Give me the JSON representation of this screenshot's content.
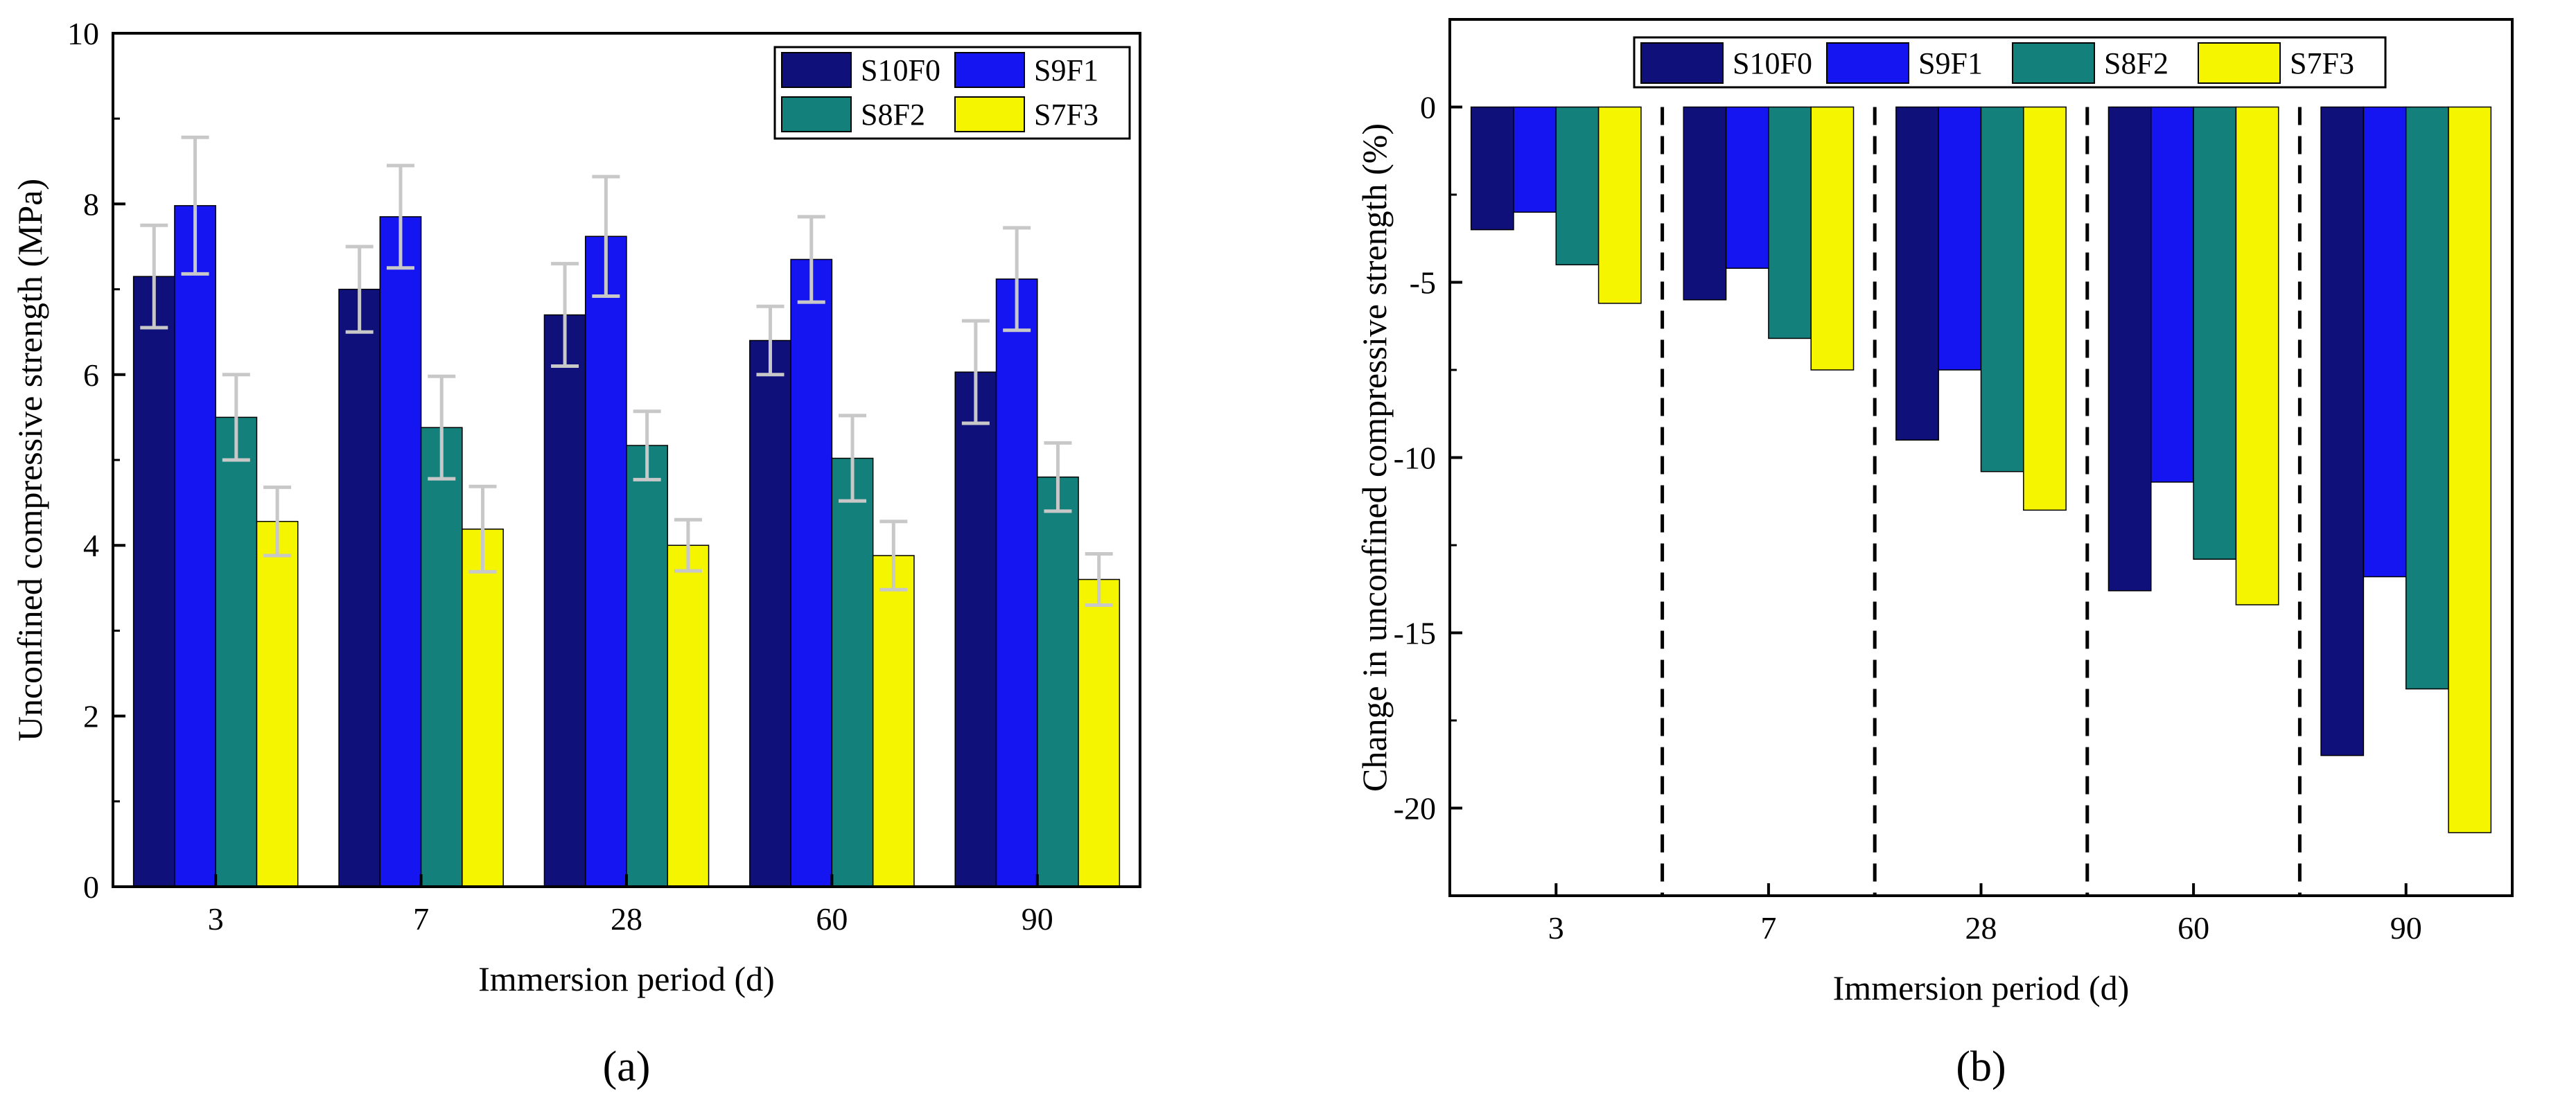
{
  "chart_data": [
    {
      "type": "bar",
      "panel_label": "(a)",
      "categories": [
        "3",
        "7",
        "28",
        "60",
        "90"
      ],
      "series": [
        {
          "name": "S10F0",
          "color": "#10107a",
          "values": [
            7.15,
            7.0,
            6.7,
            6.4,
            6.03
          ],
          "errors": [
            0.6,
            0.5,
            0.6,
            0.4,
            0.6
          ]
        },
        {
          "name": "S9F1",
          "color": "#1515f2",
          "values": [
            7.98,
            7.85,
            7.62,
            7.35,
            7.12
          ],
          "errors": [
            0.8,
            0.6,
            0.7,
            0.5,
            0.6
          ]
        },
        {
          "name": "S8F2",
          "color": "#14807c",
          "values": [
            5.5,
            5.38,
            5.17,
            5.02,
            4.8
          ],
          "errors": [
            0.5,
            0.6,
            0.4,
            0.5,
            0.4
          ]
        },
        {
          "name": "S7F3",
          "color": "#f5f500",
          "values": [
            4.28,
            4.19,
            4.0,
            3.88,
            3.6
          ],
          "errors": [
            0.4,
            0.5,
            0.3,
            0.4,
            0.3
          ]
        }
      ],
      "xlabel": "Immersion period (d)",
      "ylabel": "Unconfined compressive strength (MPa)",
      "ylim": [
        0,
        10
      ],
      "yticks": [
        "0",
        "2",
        "4",
        "6",
        "8",
        "10"
      ],
      "grid": false,
      "legend": "top-right",
      "error_bar_color": "#c8c8c8"
    },
    {
      "type": "bar",
      "panel_label": "(b)",
      "categories": [
        "3",
        "7",
        "28",
        "60",
        "90"
      ],
      "series": [
        {
          "name": "S10F0",
          "color": "#10107a",
          "values": [
            -3.5,
            -5.5,
            -9.5,
            -13.8,
            -18.5
          ]
        },
        {
          "name": "S9F1",
          "color": "#1515f2",
          "values": [
            -3.0,
            -4.6,
            -7.5,
            -10.7,
            -13.4
          ]
        },
        {
          "name": "S8F2",
          "color": "#14807c",
          "values": [
            -4.5,
            -6.6,
            -10.4,
            -12.9,
            -16.6
          ]
        },
        {
          "name": "S7F3",
          "color": "#f5f500",
          "values": [
            -5.6,
            -7.5,
            -11.5,
            -14.2,
            -20.7
          ]
        }
      ],
      "xlabel": "Immersion period (d)",
      "ylabel": "Change in unconfined compressive strength (%)",
      "ylim": [
        -22.5,
        2.5
      ],
      "yticks": [
        "0",
        "-5",
        "-10",
        "-15",
        "-20"
      ],
      "grid": false,
      "legend": "top",
      "separators": "dashed"
    }
  ]
}
